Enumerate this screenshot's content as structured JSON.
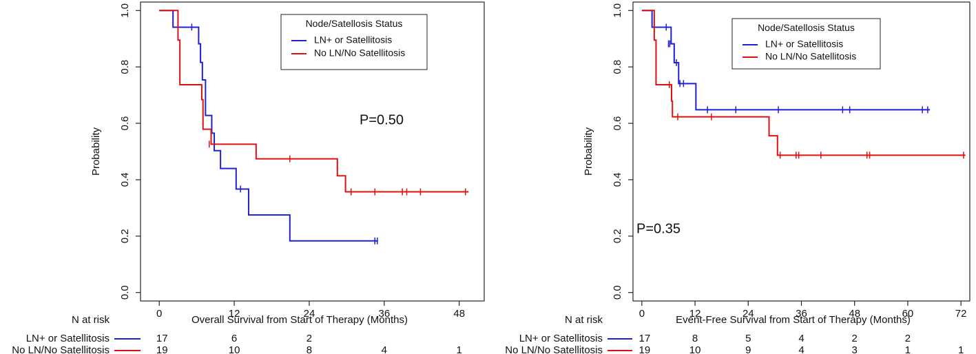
{
  "chart_data": [
    {
      "type": "line",
      "title": "",
      "xlabel": "Overall Survival from Start of Therapy (Months)",
      "ylabel": "Probability",
      "xlim": [
        -3,
        52
      ],
      "ylim": [
        -0.03,
        1.03
      ],
      "xticks": [
        0,
        12,
        24,
        36,
        48
      ],
      "xtick_labels": [
        "0",
        "12",
        "24",
        "36",
        "48"
      ],
      "yticks": [
        0.0,
        0.2,
        0.4,
        0.6,
        0.8,
        1.0
      ],
      "ytick_labels": [
        "0.0",
        "0.2",
        "0.4",
        "0.6",
        "0.8",
        "1.0"
      ],
      "legend": {
        "title": "Node/Satellosis Status",
        "position": "top-right",
        "entries": [
          "LN+ or Satellitosis",
          "No LN/No Satellitosis"
        ]
      },
      "annotation": "P=0.50",
      "series": [
        {
          "name": "LN+ or Satellitosis",
          "color": "#1f1fd6",
          "steps": [
            [
              0,
              1.0
            ],
            [
              2.2,
              0.941
            ],
            [
              6.3,
              0.882
            ],
            [
              6.6,
              0.816
            ],
            [
              6.9,
              0.754
            ],
            [
              7.4,
              0.628
            ],
            [
              8.4,
              0.565
            ],
            [
              8.8,
              0.503
            ],
            [
              9.8,
              0.44
            ],
            [
              12.3,
              0.367
            ],
            [
              14.3,
              0.275
            ],
            [
              20.9,
              0.183
            ],
            [
              35.0,
              0.183
            ]
          ],
          "censored": [
            [
              5.2,
              0.941
            ],
            [
              13.0,
              0.367
            ],
            [
              34.5,
              0.183
            ],
            [
              34.9,
              0.183
            ]
          ]
        },
        {
          "name": "No LN/No Satellitosis",
          "color": "#e01010",
          "steps": [
            [
              0,
              1.0
            ],
            [
              3.0,
              0.895
            ],
            [
              3.3,
              0.737
            ],
            [
              6.8,
              0.684
            ],
            [
              7.0,
              0.579
            ],
            [
              8.3,
              0.526
            ],
            [
              15.5,
              0.474
            ],
            [
              28.5,
              0.414
            ],
            [
              29.8,
              0.357
            ],
            [
              49.5,
              0.357
            ]
          ],
          "censored": [
            [
              8.0,
              0.526
            ],
            [
              20.9,
              0.474
            ],
            [
              30.7,
              0.357
            ],
            [
              34.5,
              0.357
            ],
            [
              38.9,
              0.357
            ],
            [
              39.6,
              0.357
            ],
            [
              41.8,
              0.357
            ],
            [
              49.0,
              0.357
            ]
          ]
        }
      ],
      "risk_table": {
        "header": "N at risk",
        "rows": [
          {
            "label": "LN+ or Satellitosis",
            "color": "#1f1fd6",
            "counts": [
              {
                "x": 0,
                "n": "17"
              },
              {
                "x": 12,
                "n": "6"
              },
              {
                "x": 24,
                "n": "2"
              }
            ]
          },
          {
            "label": "No LN/No Satellitosis",
            "color": "#e01010",
            "counts": [
              {
                "x": 0,
                "n": "19"
              },
              {
                "x": 12,
                "n": "10"
              },
              {
                "x": 24,
                "n": "8"
              },
              {
                "x": 36,
                "n": "4"
              },
              {
                "x": 48,
                "n": "1"
              }
            ]
          }
        ]
      }
    },
    {
      "type": "line",
      "title": "",
      "xlabel": "Event-Free Survival from Start of Therapy (Months)",
      "ylabel": "Probability",
      "xlim": [
        -2,
        74
      ],
      "ylim": [
        -0.03,
        1.03
      ],
      "xticks": [
        0,
        12,
        24,
        36,
        48,
        60,
        72
      ],
      "xtick_labels": [
        "0",
        "12",
        "24",
        "36",
        "48",
        "60",
        "72"
      ],
      "yticks": [
        0.0,
        0.2,
        0.4,
        0.6,
        0.8,
        1.0
      ],
      "ytick_labels": [
        "0.0",
        "0.2",
        "0.4",
        "0.6",
        "0.8",
        "1.0"
      ],
      "legend": {
        "title": "Node/Satellosis Status",
        "position": "top-right",
        "entries": [
          "LN+ or Satellitosis",
          "No LN/No Satellitosis"
        ]
      },
      "annotation": "P=0.35",
      "series": [
        {
          "name": "LN+ or Satellitosis",
          "color": "#1f1fd6",
          "steps": [
            [
              0,
              1.0
            ],
            [
              2.3,
              0.941
            ],
            [
              6.6,
              0.882
            ],
            [
              7.3,
              0.815
            ],
            [
              8.3,
              0.741
            ],
            [
              12.2,
              0.648
            ],
            [
              65.0,
              0.648
            ]
          ],
          "censored": [
            [
              5.5,
              0.941
            ],
            [
              6.0,
              0.882
            ],
            [
              6.3,
              0.882
            ],
            [
              7.8,
              0.815
            ],
            [
              8.6,
              0.741
            ],
            [
              9.4,
              0.741
            ],
            [
              14.8,
              0.648
            ],
            [
              21.2,
              0.648
            ],
            [
              30.8,
              0.648
            ],
            [
              45.3,
              0.648
            ],
            [
              46.9,
              0.648
            ],
            [
              63.3,
              0.648
            ],
            [
              64.5,
              0.648
            ]
          ]
        },
        {
          "name": "No LN/No Satellitosis",
          "color": "#e01010",
          "steps": [
            [
              0,
              1.0
            ],
            [
              2.8,
              0.895
            ],
            [
              3.2,
              0.737
            ],
            [
              6.7,
              0.679
            ],
            [
              6.9,
              0.623
            ],
            [
              28.7,
              0.556
            ],
            [
              30.6,
              0.487
            ],
            [
              73.0,
              0.487
            ]
          ],
          "censored": [
            [
              6.2,
              0.737
            ],
            [
              8.1,
              0.623
            ],
            [
              15.7,
              0.623
            ],
            [
              31.2,
              0.487
            ],
            [
              34.8,
              0.487
            ],
            [
              35.4,
              0.487
            ],
            [
              40.4,
              0.487
            ],
            [
              50.8,
              0.487
            ],
            [
              51.4,
              0.487
            ],
            [
              72.6,
              0.487
            ]
          ]
        }
      ],
      "risk_table": {
        "header": "N at risk",
        "rows": [
          {
            "label": "LN+ or Satellitosis",
            "color": "#1f1fd6",
            "counts": [
              {
                "x": 0,
                "n": "17"
              },
              {
                "x": 12,
                "n": "8"
              },
              {
                "x": 24,
                "n": "5"
              },
              {
                "x": 36,
                "n": "4"
              },
              {
                "x": 48,
                "n": "2"
              },
              {
                "x": 60,
                "n": "2"
              }
            ]
          },
          {
            "label": "No LN/No Satellitosis",
            "color": "#e01010",
            "counts": [
              {
                "x": 0,
                "n": "19"
              },
              {
                "x": 12,
                "n": "10"
              },
              {
                "x": 24,
                "n": "9"
              },
              {
                "x": 36,
                "n": "4"
              },
              {
                "x": 48,
                "n": "3"
              },
              {
                "x": 60,
                "n": "1"
              },
              {
                "x": 72,
                "n": "1"
              }
            ]
          }
        ]
      }
    }
  ]
}
